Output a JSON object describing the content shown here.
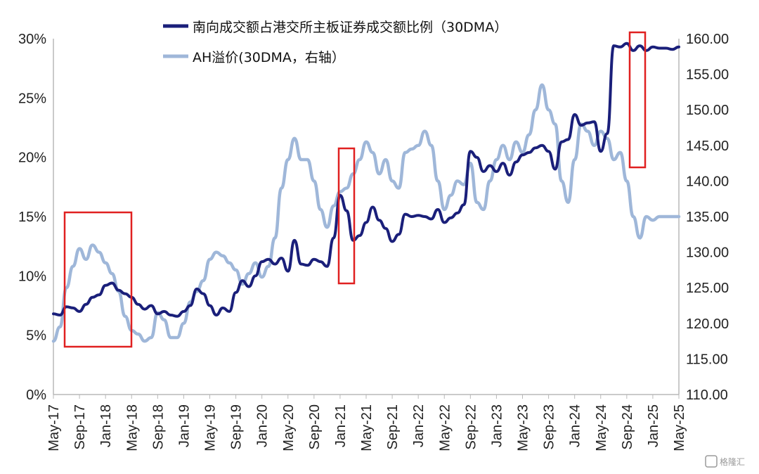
{
  "chart_data": {
    "type": "line",
    "title": "",
    "legend": [
      "南向成交额占港交所主板证券成交额比例（30DMA）",
      "AH溢价(30DMA，右轴）"
    ],
    "legend_position": "top",
    "grid": false,
    "x_tick_labels": [
      "May-17",
      "Sep-17",
      "Jan-18",
      "May-18",
      "Sep-18",
      "Jan-19",
      "May-19",
      "Sep-19",
      "Jan-20",
      "May-20",
      "Sep-20",
      "Jan-21",
      "May-21",
      "Sep-21",
      "Jan-22",
      "May-22",
      "Sep-22",
      "Jan-23",
      "May-23",
      "Sep-23",
      "Jan-24",
      "May-24",
      "Sep-24",
      "Jan-25",
      "May-25"
    ],
    "y_left": {
      "ticks": [
        "0%",
        "5%",
        "10%",
        "15%",
        "20%",
        "25%",
        "30%"
      ],
      "range": [
        0,
        30
      ],
      "unit": "%"
    },
    "y_right": {
      "ticks": [
        "110.00",
        "115.00",
        "120.00",
        "125.00",
        "130.00",
        "135.00",
        "140.00",
        "145.00",
        "150.00",
        "155.00",
        "160.00"
      ],
      "range": [
        110,
        160
      ]
    },
    "series": [
      {
        "name": "南向成交额占港交所主板证券成交额比例（30DMA）",
        "axis": "left",
        "color": "#1a1f7a",
        "x": [
          "2017-05",
          "2017-06",
          "2017-07",
          "2017-08",
          "2017-09",
          "2017-10",
          "2017-11",
          "2017-12",
          "2018-01",
          "2018-02",
          "2018-03",
          "2018-04",
          "2018-05",
          "2018-06",
          "2018-07",
          "2018-08",
          "2018-09",
          "2018-10",
          "2018-11",
          "2018-12",
          "2019-01",
          "2019-02",
          "2019-03",
          "2019-04",
          "2019-05",
          "2019-06",
          "2019-07",
          "2019-08",
          "2019-09",
          "2019-10",
          "2019-11",
          "2019-12",
          "2020-01",
          "2020-02",
          "2020-03",
          "2020-04",
          "2020-05",
          "2020-06",
          "2020-07",
          "2020-08",
          "2020-09",
          "2020-10",
          "2020-11",
          "2020-12",
          "2021-01",
          "2021-02",
          "2021-03",
          "2021-04",
          "2021-05",
          "2021-06",
          "2021-07",
          "2021-08",
          "2021-09",
          "2021-10",
          "2021-11",
          "2021-12",
          "2022-01",
          "2022-02",
          "2022-03",
          "2022-04",
          "2022-05",
          "2022-06",
          "2022-07",
          "2022-08",
          "2022-09",
          "2022-10",
          "2022-11",
          "2022-12",
          "2023-01",
          "2023-02",
          "2023-03",
          "2023-04",
          "2023-05",
          "2023-06",
          "2023-07",
          "2023-08",
          "2023-09",
          "2023-10",
          "2023-11",
          "2023-12",
          "2024-01",
          "2024-02",
          "2024-03",
          "2024-04",
          "2024-05",
          "2024-06",
          "2024-07",
          "2024-08",
          "2024-09",
          "2024-10",
          "2024-11",
          "2024-12",
          "2025-01",
          "2025-02",
          "2025-03",
          "2025-04",
          "2025-05"
        ],
        "values": [
          6.8,
          6.7,
          7.4,
          7.3,
          7.0,
          7.6,
          8.2,
          8.4,
          9.2,
          9.4,
          8.8,
          8.5,
          8.2,
          7.6,
          7.2,
          7.5,
          6.8,
          7.0,
          6.7,
          6.6,
          7.0,
          7.5,
          8.9,
          8.5,
          7.5,
          6.7,
          7.3,
          7.0,
          8.6,
          9.6,
          9.1,
          10.0,
          11.2,
          11.4,
          11.0,
          11.5,
          10.4,
          13.0,
          11.0,
          10.9,
          11.4,
          11.2,
          10.8,
          13.2,
          16.8,
          15.5,
          13.0,
          13.4,
          14.5,
          15.8,
          14.7,
          14.0,
          12.9,
          13.5,
          15.2,
          15.0,
          15.1,
          15.0,
          14.8,
          15.6,
          14.5,
          14.9,
          15.3,
          16.0,
          20.5,
          20.0,
          18.8,
          19.3,
          18.8,
          19.5,
          18.5,
          19.6,
          20.2,
          20.4,
          20.8,
          21.0,
          20.5,
          19.0,
          21.3,
          21.5,
          23.6,
          22.7,
          22.9,
          23.0,
          20.5,
          22.0,
          29.4,
          29.3,
          29.6,
          29.0,
          29.4,
          29.0,
          29.3,
          29.2,
          29.2,
          29.1,
          29.3
        ]
      },
      {
        "name": "AH溢价(30DMA，右轴）",
        "axis": "right",
        "color": "#9fb7d9",
        "x": [
          "2017-05",
          "2017-06",
          "2017-07",
          "2017-08",
          "2017-09",
          "2017-10",
          "2017-11",
          "2017-12",
          "2018-01",
          "2018-02",
          "2018-03",
          "2018-04",
          "2018-05",
          "2018-06",
          "2018-07",
          "2018-08",
          "2018-09",
          "2018-10",
          "2018-11",
          "2018-12",
          "2019-01",
          "2019-02",
          "2019-03",
          "2019-04",
          "2019-05",
          "2019-06",
          "2019-07",
          "2019-08",
          "2019-09",
          "2019-10",
          "2019-11",
          "2019-12",
          "2020-01",
          "2020-02",
          "2020-03",
          "2020-04",
          "2020-05",
          "2020-06",
          "2020-07",
          "2020-08",
          "2020-09",
          "2020-10",
          "2020-11",
          "2020-12",
          "2021-01",
          "2021-02",
          "2021-03",
          "2021-04",
          "2021-05",
          "2021-06",
          "2021-07",
          "2021-08",
          "2021-09",
          "2021-10",
          "2021-11",
          "2021-12",
          "2022-01",
          "2022-02",
          "2022-03",
          "2022-04",
          "2022-05",
          "2022-06",
          "2022-07",
          "2022-08",
          "2022-09",
          "2022-10",
          "2022-11",
          "2022-12",
          "2023-01",
          "2023-02",
          "2023-03",
          "2023-04",
          "2023-05",
          "2023-06",
          "2023-07",
          "2023-08",
          "2023-09",
          "2023-10",
          "2023-11",
          "2023-12",
          "2024-01",
          "2024-02",
          "2024-03",
          "2024-04",
          "2024-05",
          "2024-06",
          "2024-07",
          "2024-08",
          "2024-09",
          "2024-10",
          "2024-11",
          "2024-12",
          "2025-01",
          "2025-02",
          "2025-03",
          "2025-04",
          "2025-05"
        ],
        "values": [
          117.5,
          119.5,
          125.0,
          128.0,
          130.5,
          129.0,
          131.0,
          130.0,
          128.5,
          127.0,
          124.5,
          121.0,
          119.0,
          118.5,
          117.5,
          118.0,
          121.5,
          120.5,
          118.0,
          118.0,
          120.0,
          123.0,
          124.5,
          126.0,
          129.0,
          130.0,
          129.5,
          128.5,
          127.5,
          125.5,
          127.0,
          128.5,
          126.5,
          128.0,
          132.0,
          139.0,
          143.0,
          146.0,
          143.0,
          143.0,
          140.0,
          136.0,
          133.5,
          136.5,
          138.5,
          139.0,
          141.0,
          143.0,
          145.5,
          144.0,
          141.0,
          143.0,
          140.0,
          139.0,
          144.0,
          144.5,
          145.0,
          147.0,
          145.0,
          140.0,
          136.0,
          138.0,
          140.0,
          139.5,
          142.5,
          137.0,
          136.0,
          140.0,
          143.0,
          145.0,
          143.0,
          145.5,
          144.0,
          146.5,
          150.0,
          153.5,
          150.0,
          148.0,
          140.0,
          137.0,
          143.0,
          148.0,
          147.0,
          145.0,
          147.0,
          146.0,
          143.0,
          144.0,
          140.0,
          135.0,
          132.0,
          135.0,
          134.5,
          135.0,
          135.0,
          135.0,
          135.0
        ]
      }
    ],
    "annotations": [
      "highlight box around May-17 to May-18",
      "highlight box around Jan-21",
      "highlight box around Oct-24"
    ]
  },
  "watermark": "格隆汇"
}
